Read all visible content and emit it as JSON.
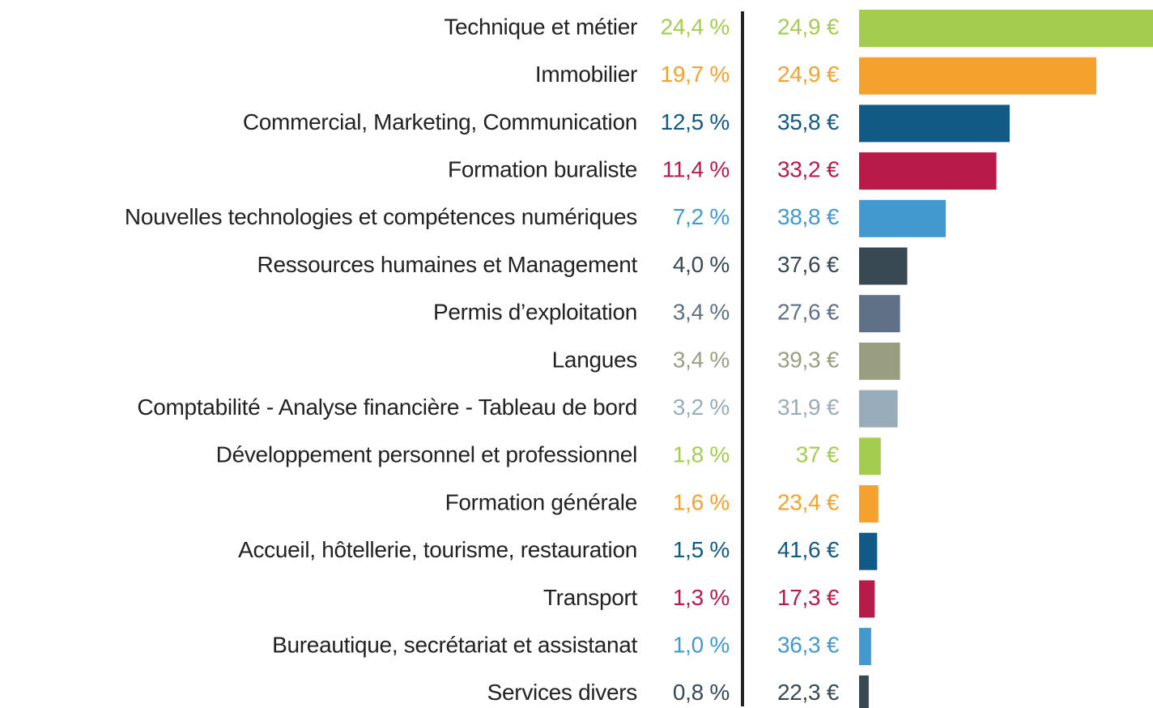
{
  "chart_data": {
    "type": "bar",
    "categories": [
      "Technique et métier",
      "Immobilier",
      "Commercial, Marketing, Communication",
      "Formation buraliste",
      "Nouvelles technologies et compétences numériques",
      "Ressources humaines et Management",
      "Permis d’exploitation",
      "Langues",
      "Comptabilité - Analyse financière - Tableau de bord",
      "Développement personnel et professionnel",
      "Formation générale",
      "Accueil, hôtellerie, tourisme, restauration",
      "Transport",
      "Bureautique, secrétariat et assistanat",
      "Services divers"
    ],
    "colors": [
      "#a4cd4f",
      "#f4a22d",
      "#125a86",
      "#b81a4a",
      "#4299cf",
      "#384954",
      "#5e7187",
      "#9a9e80",
      "#98acb9",
      "#a4cd4f",
      "#f4a22d",
      "#125a86",
      "#b81a4a",
      "#4299cf",
      "#384954"
    ],
    "series": [
      {
        "values": [
          24.4,
          19.7,
          12.5,
          11.4,
          7.2,
          4.0,
          3.4,
          3.4,
          3.2,
          1.8,
          1.6,
          1.5,
          1.3,
          1.0,
          0.8
        ],
        "value_labels": [
          "24,4 %",
          "19,7 %",
          "12,5 %",
          "11,4 %",
          "7,2 %",
          "4,0 %",
          "3,4 %",
          "3,4 %",
          "3,2 %",
          "1,8 %",
          "1,6 %",
          "1,5 %",
          "1,3 %",
          "1,0 %",
          "0,8 %"
        ]
      },
      {
        "values": [
          24.9,
          24.9,
          35.8,
          33.2,
          38.8,
          37.6,
          27.6,
          39.3,
          31.9,
          37,
          23.4,
          41.6,
          17.3,
          36.3,
          22.3
        ],
        "value_labels": [
          "24,9 €",
          "24,9 €",
          "35,8 €",
          "33,2 €",
          "38,8 €",
          "37,6 €",
          "27,6 €",
          "39,3 €",
          "31,9 €",
          "37 €",
          "23,4 €",
          "41,6 €",
          "17,3 €",
          "36,3 €",
          "22,3 €"
        ]
      }
    ]
  }
}
